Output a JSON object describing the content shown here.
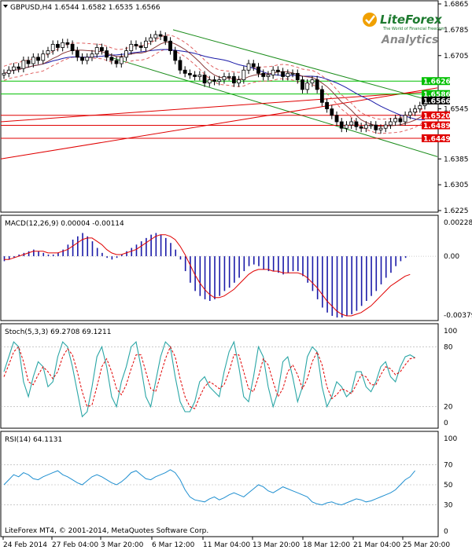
{
  "chart_data": [
    {
      "type": "candlestick",
      "header": "GBPUSD,H4  1.6544 1.6582 1.6535 1.6566",
      "symbol": "GBPUSD",
      "timeframe": "H4",
      "ohlc_last": [
        1.6544,
        1.6582,
        1.6535,
        1.6566
      ],
      "ylim": [
        1.6225,
        1.6865
      ],
      "y_ticks": [
        "1.6865",
        "1.6785",
        "1.6705",
        "1.6626",
        "1.6586",
        "1.6566",
        "1.6545",
        "1.6520",
        "1.6489",
        "1.6449",
        "1.6385",
        "1.6305",
        "1.6225"
      ],
      "x_ticks": [
        "24 Feb 2014",
        "27 Feb 04:00",
        "3 Mar 20:00",
        "6 Mar 12:00",
        "11 Mar 04:00",
        "13 Mar 20:00",
        "18 Mar 12:00",
        "21 Mar 04:00",
        "25 Mar 20:00"
      ],
      "close_series": [
        1.665,
        1.666,
        1.667,
        1.6665,
        1.669,
        1.668,
        1.67,
        1.669,
        1.671,
        1.672,
        1.674,
        1.673,
        1.6745,
        1.674,
        1.672,
        1.67,
        1.669,
        1.67,
        1.671,
        1.673,
        1.672,
        1.67,
        1.669,
        1.668,
        1.67,
        1.672,
        1.674,
        1.6735,
        1.673,
        1.675,
        1.676,
        1.677,
        1.6765,
        1.675,
        1.672,
        1.669,
        1.666,
        1.665,
        1.6645,
        1.664,
        1.6645,
        1.662,
        1.663,
        1.6625,
        1.663,
        1.664,
        1.664,
        1.662,
        1.663,
        1.666,
        1.668,
        1.667,
        1.665,
        1.664,
        1.6645,
        1.666,
        1.6655,
        1.664,
        1.665,
        1.665,
        1.663,
        1.66,
        1.662,
        1.663,
        1.66,
        1.656,
        1.654,
        1.652,
        1.65,
        1.648,
        1.649,
        1.65,
        1.6485,
        1.648,
        1.649,
        1.649,
        1.6475,
        1.648,
        1.649,
        1.65,
        1.651,
        1.65,
        1.652,
        1.653,
        1.654,
        1.655,
        1.6566
      ],
      "horizontal_levels": [
        {
          "label": "1.6626",
          "price": 1.6626,
          "color": "#00c000"
        },
        {
          "label": "1.6586",
          "price": 1.6586,
          "color": "#00c000"
        },
        {
          "label": "1.6520",
          "price": 1.652,
          "color": "#e00000"
        },
        {
          "label": "1.6489",
          "price": 1.6489,
          "color": "#e00000"
        },
        {
          "label": "1.6449",
          "price": 1.6449,
          "color": "#e00000"
        }
      ],
      "price_label": {
        "label": "1.6566",
        "price": 1.6566
      }
    },
    {
      "type": "macd",
      "header": "MACD(12,26,9) 0.00004 -0.00114",
      "ylim": [
        -0.00379,
        0.00228
      ],
      "y_ticks": [
        "0.00228",
        "0.00",
        "-0.00379"
      ],
      "histogram": [
        -0.0003,
        -0.0002,
        -0.0001,
        0.0001,
        0.0002,
        0.0003,
        0.0004,
        0.0003,
        0.0002,
        0.0001,
        0.0001,
        0.0002,
        0.0004,
        0.0007,
        0.001,
        0.0012,
        0.0014,
        0.0012,
        0.0009,
        0.0005,
        0.0002,
        -0.0001,
        -0.0002,
        -0.0001,
        0.0001,
        0.0003,
        0.0005,
        0.0007,
        0.0009,
        0.0011,
        0.0013,
        0.0014,
        0.0013,
        0.0011,
        0.0008,
        0.0004,
        -0.0002,
        -0.0009,
        -0.0016,
        -0.0021,
        -0.0024,
        -0.0026,
        -0.0027,
        -0.0026,
        -0.0024,
        -0.0021,
        -0.0019,
        -0.0016,
        -0.0013,
        -0.0009,
        -0.0006,
        -0.0005,
        -0.0006,
        -0.0008,
        -0.0009,
        -0.0009,
        -0.001,
        -0.0011,
        -0.001,
        -0.0009,
        -0.0009,
        -0.0012,
        -0.0016,
        -0.0021,
        -0.0026,
        -0.0031,
        -0.0034,
        -0.0036,
        -0.0037,
        -0.0037,
        -0.0036,
        -0.0035,
        -0.0033,
        -0.003,
        -0.0027,
        -0.0024,
        -0.0021,
        -0.0017,
        -0.0013,
        -0.001,
        -0.0006,
        -0.0003,
        -0.0001,
        0.0
      ],
      "signal": [
        -0.0002,
        -0.0002,
        -0.0001,
        0.0,
        0.0001,
        0.0002,
        0.0003,
        0.0003,
        0.0003,
        0.0002,
        0.0002,
        0.0002,
        0.0003,
        0.0004,
        0.0006,
        0.0008,
        0.001,
        0.0011,
        0.0011,
        0.0009,
        0.0007,
        0.0004,
        0.0002,
        0.0001,
        0.0001,
        0.0002,
        0.0003,
        0.0004,
        0.0006,
        0.0008,
        0.001,
        0.0012,
        0.0013,
        0.0013,
        0.0012,
        0.001,
        0.0006,
        0.0001,
        -0.0005,
        -0.0011,
        -0.0016,
        -0.002,
        -0.0023,
        -0.0025,
        -0.0025,
        -0.0024,
        -0.0022,
        -0.002,
        -0.0017,
        -0.0014,
        -0.0011,
        -0.0009,
        -0.0008,
        -0.0008,
        -0.0008,
        -0.0009,
        -0.0009,
        -0.001,
        -0.001,
        -0.001,
        -0.001,
        -0.0011,
        -0.0013,
        -0.0016,
        -0.0019,
        -0.0023,
        -0.0027,
        -0.003,
        -0.0033,
        -0.0035,
        -0.0036,
        -0.0036,
        -0.0035,
        -0.0034,
        -0.0032,
        -0.003,
        -0.0027,
        -0.0024,
        -0.0021,
        -0.0018,
        -0.0016,
        -0.0014,
        -0.0012,
        -0.0011
      ]
    },
    {
      "type": "stochastic",
      "header": "Stoch(5,3,3) 69.2708 69.1211",
      "ylim": [
        0,
        100
      ],
      "y_ticks": [
        "100",
        "80",
        "20",
        "0"
      ],
      "main": [
        55,
        70,
        85,
        80,
        45,
        30,
        50,
        65,
        60,
        40,
        45,
        70,
        85,
        80,
        60,
        35,
        10,
        15,
        40,
        70,
        80,
        60,
        30,
        20,
        45,
        60,
        80,
        85,
        60,
        30,
        20,
        45,
        70,
        85,
        80,
        50,
        25,
        15,
        15,
        25,
        45,
        50,
        40,
        35,
        30,
        55,
        75,
        85,
        60,
        30,
        25,
        50,
        80,
        70,
        40,
        20,
        35,
        65,
        70,
        50,
        25,
        40,
        70,
        80,
        75,
        40,
        20,
        30,
        45,
        40,
        30,
        35,
        55,
        55,
        40,
        35,
        45,
        60,
        65,
        50,
        45,
        60,
        70,
        72,
        69
      ],
      "signal": [
        50,
        62,
        75,
        80,
        65,
        45,
        42,
        52,
        60,
        55,
        48,
        55,
        70,
        78,
        72,
        55,
        35,
        20,
        22,
        40,
        60,
        68,
        55,
        38,
        32,
        42,
        58,
        72,
        72,
        55,
        38,
        35,
        52,
        68,
        80,
        70,
        48,
        30,
        20,
        18,
        30,
        40,
        45,
        42,
        38,
        42,
        55,
        72,
        72,
        55,
        38,
        35,
        50,
        68,
        62,
        45,
        30,
        38,
        55,
        62,
        52,
        38,
        48,
        65,
        75,
        62,
        40,
        28,
        32,
        38,
        36,
        33,
        42,
        52,
        50,
        42,
        42,
        52,
        60,
        58,
        52,
        55,
        62,
        68,
        69
      ]
    },
    {
      "type": "rsi",
      "header": "RSI(14) 64.1131",
      "ylim": [
        0,
        100
      ],
      "y_ticks": [
        "100",
        "70",
        "50",
        "30",
        "0"
      ],
      "values": [
        50,
        55,
        60,
        58,
        62,
        60,
        56,
        55,
        58,
        60,
        62,
        64,
        60,
        58,
        55,
        52,
        50,
        54,
        58,
        60,
        58,
        55,
        52,
        50,
        53,
        57,
        62,
        64,
        60,
        56,
        55,
        58,
        60,
        62,
        65,
        62,
        55,
        45,
        38,
        35,
        34,
        33,
        36,
        38,
        35,
        37,
        40,
        42,
        40,
        38,
        42,
        46,
        50,
        48,
        44,
        42,
        45,
        48,
        46,
        44,
        42,
        40,
        38,
        33,
        31,
        30,
        32,
        33,
        31,
        30,
        32,
        34,
        36,
        35,
        33,
        34,
        36,
        38,
        40,
        42,
        45,
        50,
        55,
        58,
        64
      ]
    }
  ],
  "logo": {
    "brand": "LiteForex",
    "tagline": "The World of Financial Freedom",
    "product": "Analytics"
  },
  "footer": {
    "copyright": "LiteForex MT4, © 2001-2014, MetaQuotes Software Corp."
  },
  "colors": {
    "bull": "#00c000",
    "bear": "#e00000",
    "macd_hist": "#1a1aa8",
    "signal": "#e00000",
    "stoch_main": "#2aa6a6",
    "rsi": "#1f8fd0",
    "trend_channel": "#1a8c1a",
    "ma_blue": "#1a1aa8",
    "bb": "#e06060"
  }
}
